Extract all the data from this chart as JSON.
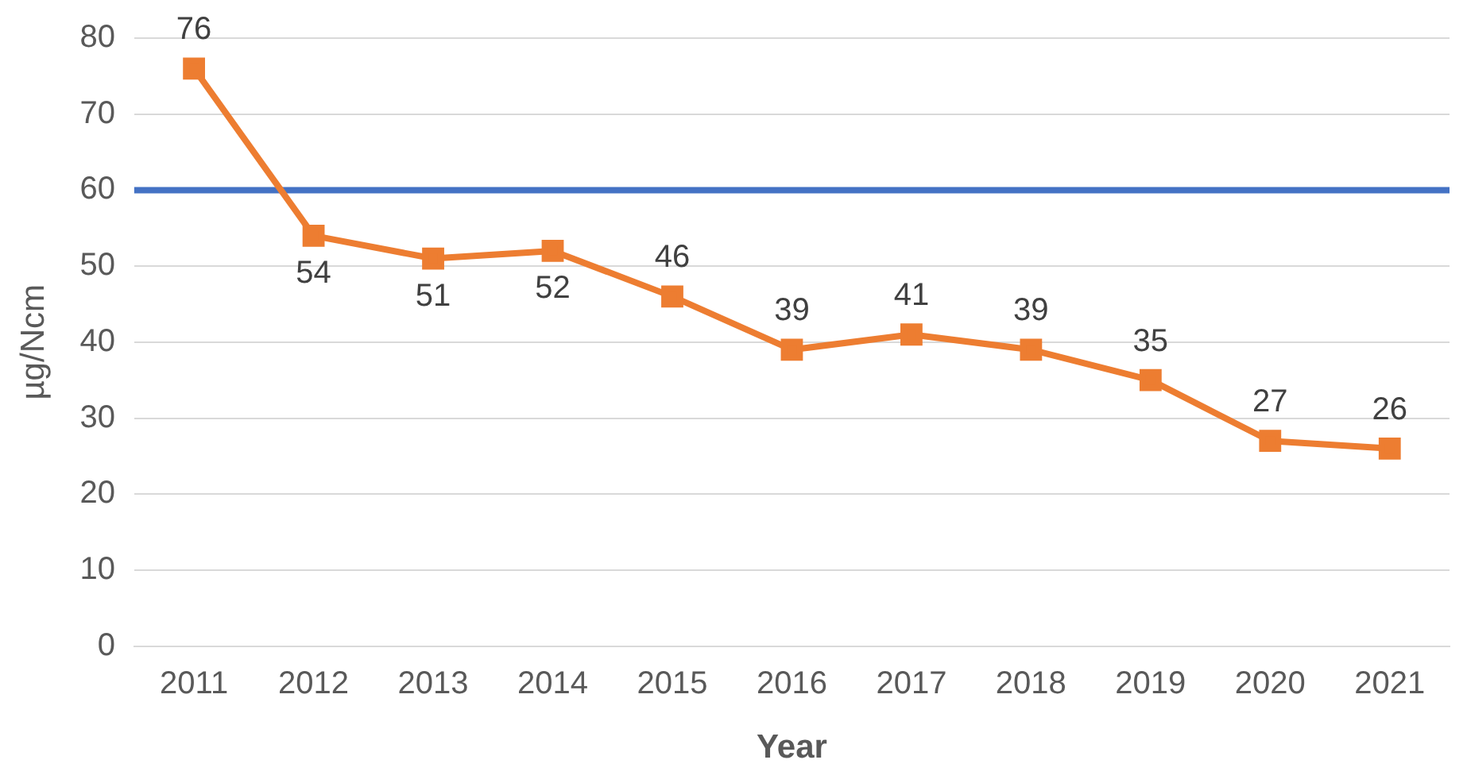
{
  "chart_data": {
    "type": "line",
    "xlabel": "Year",
    "ylabel": "µg/Ncm",
    "categories": [
      "2011",
      "2012",
      "2013",
      "2014",
      "2015",
      "2016",
      "2017",
      "2018",
      "2019",
      "2020",
      "2021"
    ],
    "series": [
      {
        "color": "#ed7d31",
        "values": [
          76,
          54,
          51,
          52,
          46,
          39,
          41,
          39,
          35,
          27,
          26
        ]
      }
    ],
    "ylim": [
      0,
      80
    ],
    "yticks": [
      0,
      10,
      20,
      30,
      40,
      50,
      60,
      70,
      80
    ],
    "grid": "y",
    "legend": false,
    "marker": "square",
    "line_style": "solid",
    "data_labels": true,
    "ref_lines": [
      {
        "axis": "y",
        "value": 60,
        "color": "#4472c4",
        "line_style": "solid"
      }
    ]
  }
}
